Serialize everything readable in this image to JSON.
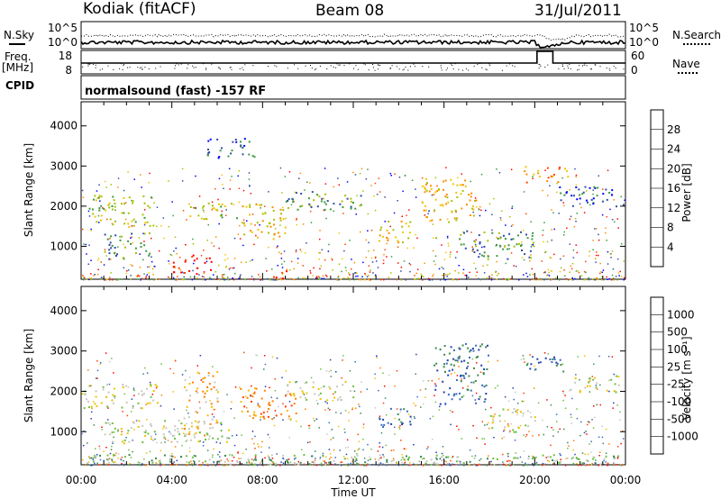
{
  "header": {
    "station": "Kodiak (fitACF)",
    "beam": "Beam 08",
    "date": "31/Jul/2011"
  },
  "top_panels": {
    "noise": {
      "left_label": "N.Sky",
      "right_label": "N.Search",
      "left_ticks": [
        "10^5",
        "10^0"
      ],
      "right_ticks": [
        "10^5",
        "10^0"
      ]
    },
    "freq": {
      "left_label_1": "Freq.",
      "left_label_2": "[MHz]",
      "right_label": "Nave",
      "left_ticks": [
        "18",
        "8"
      ],
      "right_ticks": [
        "60",
        "0"
      ]
    },
    "cpid": {
      "label": "CPID",
      "text": "normalsound (fast) -157 RF"
    }
  },
  "chart_data": [
    {
      "type": "heatmap",
      "title": "",
      "xlabel": "",
      "ylabel": "Slant Range [km]",
      "x_ticks": [
        "00:00",
        "04:00",
        "08:00",
        "12:00",
        "16:00",
        "20:00",
        "00:00"
      ],
      "y_ticks": [
        1000,
        2000,
        3000,
        4000
      ],
      "xlim": [
        0,
        24
      ],
      "ylim": [
        180,
        4600
      ],
      "colorbar": {
        "label": "Power [dB]",
        "ticks": [
          "28",
          "24",
          "20",
          "16",
          "12",
          "8",
          "4"
        ],
        "colors": [
          "#ff0000",
          "#ff4500",
          "#ff8c00",
          "#f0c400",
          "#a8c000",
          "#3a9a3a",
          "#2f4fa0",
          "#0000ff"
        ]
      },
      "regions": [
        {
          "t0": 0.3,
          "t1": 3.2,
          "r0": 1500,
          "r1": 2300,
          "level": 3
        },
        {
          "t0": 1.0,
          "t1": 3.0,
          "r0": 700,
          "r1": 1400,
          "level": 2
        },
        {
          "t0": 4.0,
          "t1": 5.8,
          "r0": 300,
          "r1": 800,
          "level": 7
        },
        {
          "t0": 4.6,
          "t1": 7.0,
          "r0": 1700,
          "r1": 2100,
          "level": 3
        },
        {
          "t0": 5.5,
          "t1": 7.8,
          "r0": 3200,
          "r1": 3700,
          "level": 1
        },
        {
          "t0": 7.0,
          "t1": 9.0,
          "r0": 1200,
          "r1": 2100,
          "level": 4
        },
        {
          "t0": 8.2,
          "t1": 9.2,
          "r0": 220,
          "r1": 400,
          "level": 7
        },
        {
          "t0": 9.0,
          "t1": 12.5,
          "r0": 1900,
          "r1": 2400,
          "level": 2
        },
        {
          "t0": 13.0,
          "t1": 14.5,
          "r0": 1100,
          "r1": 1700,
          "level": 4
        },
        {
          "t0": 15.0,
          "t1": 17.5,
          "r0": 1600,
          "r1": 2700,
          "level": 4
        },
        {
          "t0": 16.5,
          "t1": 20.0,
          "r0": 700,
          "r1": 1400,
          "level": 2
        },
        {
          "t0": 19.5,
          "t1": 21.5,
          "r0": 2600,
          "r1": 3000,
          "level": 5
        },
        {
          "t0": 21.0,
          "t1": 24.0,
          "r0": 2000,
          "r1": 2500,
          "level": 1
        }
      ]
    },
    {
      "type": "heatmap",
      "title": "",
      "xlabel": "Time UT",
      "ylabel": "Slant Range [km]",
      "x_ticks": [
        "00:00",
        "04:00",
        "08:00",
        "12:00",
        "16:00",
        "20:00",
        "00:00"
      ],
      "y_ticks": [
        1000,
        2000,
        3000,
        4000
      ],
      "xlim": [
        0,
        24
      ],
      "ylim": [
        180,
        4600
      ],
      "colorbar": {
        "label": "Velocity [m s⁻¹]",
        "ticks": [
          "1000",
          "500",
          "100",
          "25",
          "-25",
          "-100",
          "-500",
          "-1000"
        ],
        "colors": [
          "#2040b0",
          "#3a6ac0",
          "#3a8a50",
          "#6cc040",
          "#c8c8c0",
          "#f0c000",
          "#ff8000",
          "#ff4000",
          "#ff0000"
        ]
      },
      "regions": [
        {
          "t0": 0.0,
          "t1": 3.5,
          "r0": 1600,
          "r1": 2200,
          "level": 4
        },
        {
          "t0": 1.0,
          "t1": 6.5,
          "r0": 700,
          "r1": 1300,
          "level": 4
        },
        {
          "t0": 4.5,
          "t1": 6.0,
          "r0": 900,
          "r1": 2500,
          "level": 3
        },
        {
          "t0": 7.0,
          "t1": 9.5,
          "r0": 1300,
          "r1": 2100,
          "level": 2
        },
        {
          "t0": 9.0,
          "t1": 12.0,
          "r0": 1800,
          "r1": 2300,
          "level": 4
        },
        {
          "t0": 13.0,
          "t1": 14.5,
          "r0": 1100,
          "r1": 1600,
          "level": 7
        },
        {
          "t0": 15.5,
          "t1": 18.0,
          "r0": 1700,
          "r1": 3200,
          "level": 7
        },
        {
          "t0": 18.0,
          "t1": 20.0,
          "r0": 1000,
          "r1": 1600,
          "level": 4
        },
        {
          "t0": 19.5,
          "t1": 21.5,
          "r0": 2500,
          "r1": 2900,
          "level": 7
        },
        {
          "t0": 21.5,
          "t1": 24.0,
          "r0": 2000,
          "r1": 2400,
          "level": 4
        },
        {
          "t0": 0.0,
          "t1": 24.0,
          "r0": 200,
          "r1": 450,
          "level": 5
        }
      ]
    }
  ]
}
